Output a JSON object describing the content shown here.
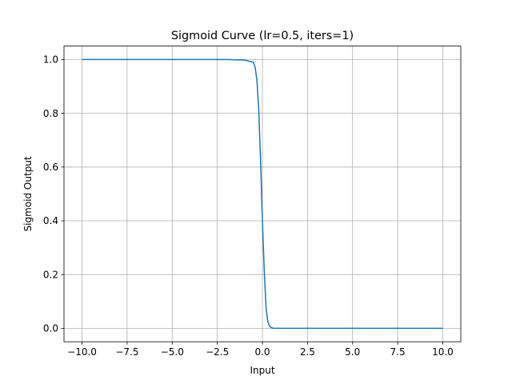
{
  "chart_data": {
    "type": "line",
    "title": "Sigmoid Curve (lr=0.5, iters=1)",
    "xlabel": "Input",
    "ylabel": "Sigmoid Output",
    "xlim": [
      -11,
      11
    ],
    "ylim": [
      -0.05,
      1.05
    ],
    "xticks": [
      -10.0,
      -7.5,
      -5.0,
      -2.5,
      0.0,
      2.5,
      5.0,
      7.5,
      10.0
    ],
    "xtick_labels": [
      "−10.0",
      "−7.5",
      "−5.0",
      "−2.5",
      "0.0",
      "2.5",
      "5.0",
      "7.5",
      "10.0"
    ],
    "yticks": [
      0.0,
      0.2,
      0.4,
      0.6,
      0.8,
      1.0
    ],
    "ytick_labels": [
      "0.0",
      "0.2",
      "0.4",
      "0.6",
      "0.8",
      "1.0"
    ],
    "grid": true,
    "series": [
      {
        "color": "#1f77b4",
        "x": [
          -10.0,
          -2.0,
          -1.0,
          -0.5,
          -0.4,
          -0.3,
          -0.2,
          -0.1,
          0.0,
          0.1,
          0.2,
          0.3,
          0.4,
          0.5,
          0.6,
          0.8,
          1.0,
          2.0,
          10.0
        ],
        "y": [
          1.0,
          1.0,
          0.998,
          0.99,
          0.97,
          0.92,
          0.81,
          0.62,
          0.4,
          0.22,
          0.08,
          0.025,
          0.008,
          0.002,
          0.0005,
          0.0,
          0.0,
          0.0,
          0.0
        ]
      }
    ]
  }
}
